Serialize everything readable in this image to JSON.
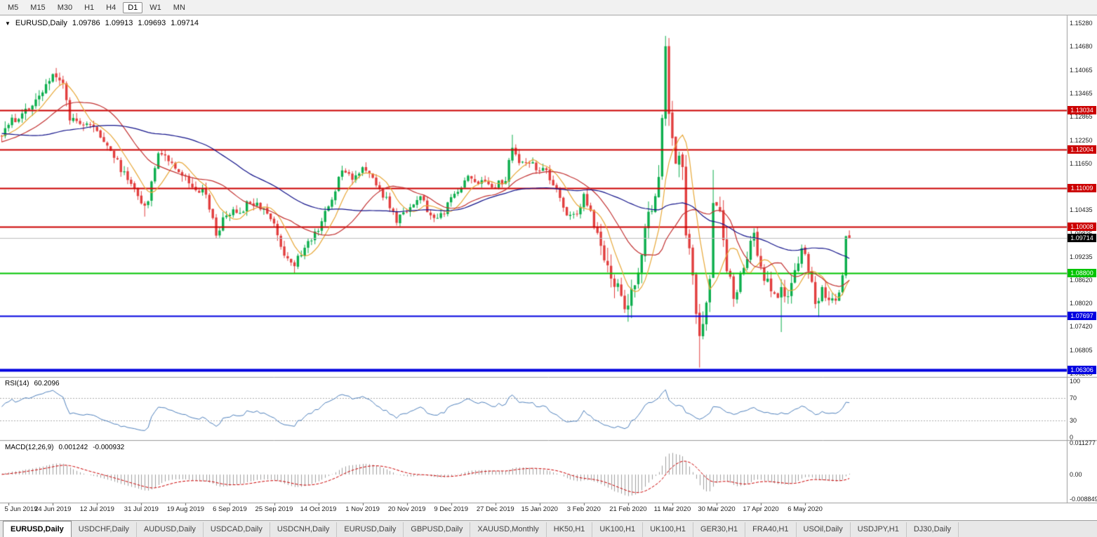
{
  "toolbar": {
    "timeframes": [
      {
        "label": "M5",
        "active": false
      },
      {
        "label": "M15",
        "active": false
      },
      {
        "label": "M30",
        "active": false
      },
      {
        "label": "H1",
        "active": false
      },
      {
        "label": "H4",
        "active": false
      },
      {
        "label": "D1",
        "active": true
      },
      {
        "label": "W1",
        "active": false
      },
      {
        "label": "MN",
        "active": false
      }
    ]
  },
  "chart": {
    "dropdown_icon": "▼",
    "symbol": "EURUSD,Daily",
    "open": "1.09786",
    "high": "1.09913",
    "low": "1.09693",
    "close": "1.09714",
    "price_ticks": [
      "1.15280",
      "1.14680",
      "1.14065",
      "1.13465",
      "1.12865",
      "1.12250",
      "1.11650",
      "1.10435",
      "1.09835",
      "1.09235",
      "1.08620",
      "1.08020",
      "1.07420",
      "1.06805",
      "1.06205"
    ],
    "levels": [
      {
        "label": "1.13034",
        "price": 1.13034,
        "color": "#CC0000",
        "width": 2
      },
      {
        "label": "1.12004",
        "price": 1.12004,
        "color": "#CC0000",
        "width": 2
      },
      {
        "label": "1.11009",
        "price": 1.11009,
        "color": "#CC0000",
        "width": 2
      },
      {
        "label": "1.10008",
        "price": 1.10008,
        "color": "#CC0000",
        "width": 2
      },
      {
        "label": "1.08800",
        "price": 1.088,
        "color": "#00C400",
        "width": 2
      },
      {
        "label": "1.07697",
        "price": 1.07697,
        "color": "#0000E0",
        "width": 2
      },
      {
        "label": "1.06306",
        "price": 1.06306,
        "color": "#0000E0",
        "width": 4
      }
    ],
    "current": {
      "label": "1.09714",
      "price": 1.09714,
      "tag_bg": "#000000",
      "line_color": "#BDBDBD"
    }
  },
  "rsi": {
    "name": "RSI(14)",
    "value": "60.2096",
    "axis": [
      "100",
      "70",
      "30",
      "0"
    ],
    "axis_values": [
      100,
      70,
      30,
      0
    ],
    "upper": 70,
    "lower": 30,
    "color": "#4F81BD"
  },
  "macd": {
    "name": "MACD(12,26,9)",
    "main_value": "0.001242",
    "signal_value": "-0.000932",
    "axis": [
      {
        "label": "0.011277",
        "value": 0.011277
      },
      {
        "label": "0.00",
        "value": 0
      },
      {
        "label": "-0.008849",
        "value": -0.008849
      }
    ],
    "hist_color": "#A0A0A0",
    "signal_color": "#CC0000"
  },
  "time_axis": [
    "5 Jun 2019",
    "24 Jun 2019",
    "12 Jul 2019",
    "31 Jul 2019",
    "19 Aug 2019",
    "6 Sep 2019",
    "25 Sep 2019",
    "14 Oct 2019",
    "1 Nov 2019",
    "20 Nov 2019",
    "9 Dec 2019",
    "27 Dec 2019",
    "15 Jan 2020",
    "3 Feb 2020",
    "21 Feb 2020",
    "11 Mar 2020",
    "30 Mar 2020",
    "17 Apr 2020",
    "6 May 2020"
  ],
  "tabs": [
    {
      "label": "EURUSD,Daily",
      "active": true
    },
    {
      "label": "USDCHF,Daily",
      "active": false
    },
    {
      "label": "AUDUSD,Daily",
      "active": false
    },
    {
      "label": "USDCAD,Daily",
      "active": false
    },
    {
      "label": "USDCNH,Daily",
      "active": false
    },
    {
      "label": "EURUSD,Daily",
      "active": false
    },
    {
      "label": "GBPUSD,Daily",
      "active": false
    },
    {
      "label": "XAUUSD,Monthly",
      "active": false
    },
    {
      "label": "HK50,H1",
      "active": false
    },
    {
      "label": "UK100,H1",
      "active": false
    },
    {
      "label": "UK100,H1",
      "active": false
    },
    {
      "label": "GER30,H1",
      "active": false
    },
    {
      "label": "FRA40,H1",
      "active": false
    },
    {
      "label": "USOil,Daily",
      "active": false
    },
    {
      "label": "USDJPY,H1",
      "active": false
    },
    {
      "label": "DJ30,Daily",
      "active": false
    }
  ],
  "chart_data": {
    "type": "candlestick",
    "symbol": "EURUSD",
    "timeframe": "D1",
    "title": "EURUSD,Daily",
    "visible_bars": 250,
    "y_axis_range": [
      1.06117,
      1.15462
    ],
    "x_tick_first_bar": 2,
    "x_tick_step_bars": 13,
    "seed": 11,
    "price_waypoints": [
      [
        -60,
        1.128
      ],
      [
        -45,
        1.1335
      ],
      [
        -30,
        1.118
      ],
      [
        -15,
        1.121
      ],
      [
        0,
        1.1245
      ],
      [
        5,
        1.129
      ],
      [
        10,
        1.132
      ],
      [
        14,
        1.138
      ],
      [
        16,
        1.14
      ],
      [
        18,
        1.137
      ],
      [
        20,
        1.1285
      ],
      [
        25,
        1.127
      ],
      [
        30,
        1.123
      ],
      [
        35,
        1.115
      ],
      [
        40,
        1.109
      ],
      [
        42,
        1.1045
      ],
      [
        44,
        1.111
      ],
      [
        46,
        1.12
      ],
      [
        50,
        1.117
      ],
      [
        55,
        1.1115
      ],
      [
        60,
        1.109
      ],
      [
        63,
        1.098
      ],
      [
        66,
        1.1035
      ],
      [
        70,
        1.104
      ],
      [
        73,
        1.107
      ],
      [
        77,
        1.105
      ],
      [
        80,
        1.1005
      ],
      [
        83,
        1.093
      ],
      [
        86,
        1.0905
      ],
      [
        89,
        1.0945
      ],
      [
        93,
        1.1
      ],
      [
        97,
        1.107
      ],
      [
        100,
        1.1155
      ],
      [
        103,
        1.113
      ],
      [
        106,
        1.115
      ],
      [
        109,
        1.1125
      ],
      [
        113,
        1.107
      ],
      [
        116,
        1.1015
      ],
      [
        120,
        1.1055
      ],
      [
        123,
        1.1075
      ],
      [
        127,
        1.1015
      ],
      [
        130,
        1.104
      ],
      [
        133,
        1.1085
      ],
      [
        137,
        1.113
      ],
      [
        141,
        1.1115
      ],
      [
        145,
        1.111
      ],
      [
        148,
        1.112
      ],
      [
        150,
        1.121
      ],
      [
        152,
        1.1165
      ],
      [
        156,
        1.116
      ],
      [
        160,
        1.114
      ],
      [
        163,
        1.109
      ],
      [
        166,
        1.1035
      ],
      [
        169,
        1.1025
      ],
      [
        171,
        1.108
      ],
      [
        173,
        1.1035
      ],
      [
        176,
        1.095
      ],
      [
        180,
        1.0855
      ],
      [
        184,
        1.079
      ],
      [
        187,
        1.088
      ],
      [
        190,
        1.1025
      ],
      [
        193,
        1.1135
      ],
      [
        195,
        1.145
      ],
      [
        196,
        1.13
      ],
      [
        198,
        1.1185
      ],
      [
        200,
        1.115
      ],
      [
        201,
        1.0995
      ],
      [
        203,
        1.086
      ],
      [
        205,
        1.07
      ],
      [
        206,
        1.0735
      ],
      [
        208,
        1.088
      ],
      [
        209,
        1.1085
      ],
      [
        211,
        1.1035
      ],
      [
        213,
        1.09
      ],
      [
        215,
        1.08
      ],
      [
        217,
        1.088
      ],
      [
        219,
        1.092
      ],
      [
        221,
        1.098
      ],
      [
        223,
        1.0885
      ],
      [
        225,
        1.086
      ],
      [
        227,
        1.0822
      ],
      [
        229,
        1.083
      ],
      [
        231,
        1.082
      ],
      [
        233,
        1.0875
      ],
      [
        235,
        1.0955
      ],
      [
        237,
        1.09
      ],
      [
        239,
        1.08
      ],
      [
        241,
        1.084
      ],
      [
        243,
        1.081
      ],
      [
        245,
        1.08
      ],
      [
        246,
        1.0835
      ],
      [
        247,
        1.088
      ],
      [
        248,
        1.0978
      ],
      [
        249,
        1.09714
      ]
    ],
    "volatility_zones": [
      {
        "from": -60,
        "to": 20,
        "vol": 0.0036
      },
      {
        "from": 20,
        "to": 60,
        "vol": 0.0032
      },
      {
        "from": 60,
        "to": 100,
        "vol": 0.003
      },
      {
        "from": 100,
        "to": 170,
        "vol": 0.0026
      },
      {
        "from": 170,
        "to": 176,
        "vol": 0.0032
      },
      {
        "from": 176,
        "to": 215,
        "vol": 0.0068
      },
      {
        "from": 215,
        "to": 238,
        "vol": 0.0042
      },
      {
        "from": 238,
        "to": 246,
        "vol": 0.0036
      },
      {
        "from": 246,
        "to": 251,
        "vol": 0.0016
      }
    ],
    "forced_extremes": [
      [
        16,
        "high",
        1.1412
      ],
      [
        42,
        "low",
        1.1027
      ],
      [
        86,
        "low",
        1.0879
      ],
      [
        150,
        "high",
        1.1239
      ],
      [
        184,
        "low",
        1.0778
      ],
      [
        195,
        "high",
        1.1495
      ],
      [
        205,
        "low",
        1.0636
      ],
      [
        209,
        "high",
        1.1148
      ],
      [
        229,
        "low",
        1.0728
      ],
      [
        240,
        "low",
        1.0767
      ]
    ],
    "final_ohlc": [
      1.09786,
      1.09913,
      1.09693,
      1.09714
    ],
    "moving_averages": [
      {
        "period": 8,
        "color": "#E8A838"
      },
      {
        "period": 21,
        "color": "#C33232"
      },
      {
        "period": 55,
        "color": "#12128A"
      }
    ],
    "up_color": "#0CAE4D",
    "down_color": "#E23E3E",
    "rsi_period": 14,
    "macd_params": [
      12,
      26,
      9
    ]
  }
}
